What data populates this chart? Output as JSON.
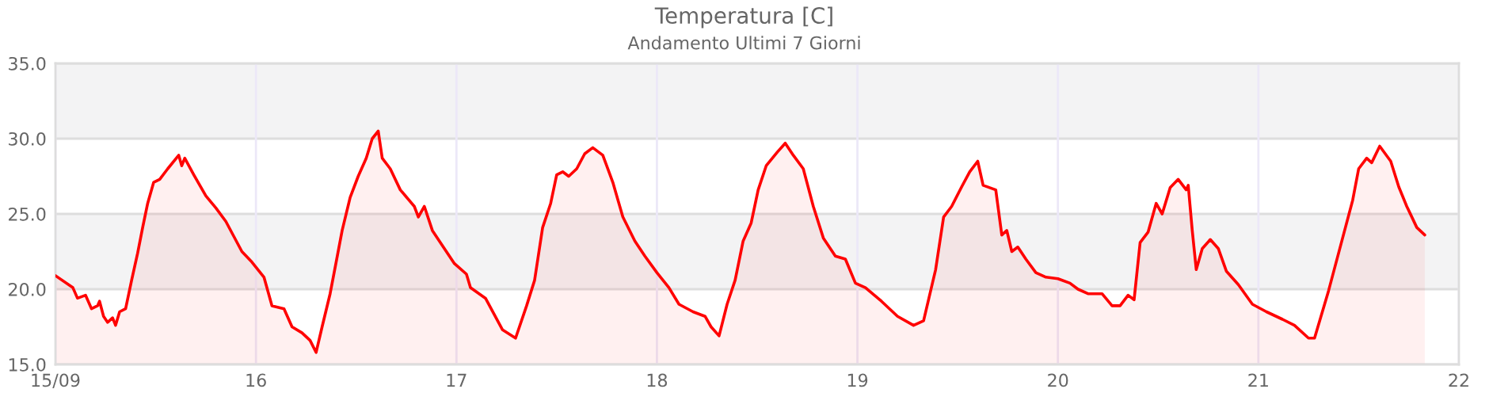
{
  "chart_data": {
    "type": "area",
    "title": "Temperatura [C]",
    "subtitle": "Andamento Ultimi 7 Giorni",
    "xlim": [
      15,
      22
    ],
    "ylim": [
      15,
      35
    ],
    "xticks": [
      {
        "value": 15,
        "label": "15/09"
      },
      16,
      17,
      18,
      19,
      20,
      21,
      22
    ],
    "yticks": [
      {
        "value": 15,
        "label": "15.0"
      },
      {
        "value": 20,
        "label": "20.0"
      },
      {
        "value": 25,
        "label": "25.0"
      },
      {
        "value": 30,
        "label": "30.0"
      },
      {
        "value": 35,
        "label": "35.0"
      }
    ],
    "grid": true,
    "bands": [
      {
        "axis": "y",
        "from": 20,
        "to": 25,
        "color": "#f3f3f4"
      },
      {
        "axis": "y",
        "from": 30,
        "to": 35,
        "color": "#f3f3f4"
      }
    ],
    "series": [
      {
        "color": "#ff0000",
        "x": [
          15.0,
          15.087,
          15.11,
          15.15,
          15.18,
          15.21,
          15.22,
          15.24,
          15.26,
          15.285,
          15.3,
          15.32,
          15.35,
          15.38,
          15.41,
          15.435,
          15.46,
          15.49,
          15.52,
          15.56,
          15.615,
          15.63,
          15.645,
          15.69,
          15.75,
          15.8,
          15.85,
          15.93,
          15.98,
          16.04,
          16.08,
          16.14,
          16.18,
          16.23,
          16.27,
          16.3,
          16.33,
          16.37,
          16.4,
          16.43,
          16.47,
          16.51,
          16.55,
          16.58,
          16.61,
          16.63,
          16.67,
          16.72,
          16.79,
          16.81,
          16.84,
          16.88,
          16.93,
          16.99,
          17.05,
          17.07,
          17.145,
          17.23,
          17.295,
          17.35,
          17.39,
          17.43,
          17.47,
          17.5,
          17.53,
          17.56,
          17.6,
          17.64,
          17.68,
          17.73,
          17.78,
          17.83,
          17.89,
          17.94,
          18.0,
          18.06,
          18.11,
          18.18,
          18.24,
          18.27,
          18.31,
          18.35,
          18.39,
          18.43,
          18.47,
          18.505,
          18.545,
          18.6,
          18.64,
          18.68,
          18.73,
          18.78,
          18.83,
          18.89,
          18.94,
          18.99,
          19.04,
          19.12,
          19.2,
          19.28,
          19.33,
          19.39,
          19.43,
          19.47,
          19.52,
          19.56,
          19.6,
          19.627,
          19.69,
          19.72,
          19.745,
          19.77,
          19.8,
          19.84,
          19.89,
          19.94,
          20.0,
          20.06,
          20.1,
          20.15,
          20.22,
          20.27,
          20.31,
          20.35,
          20.38,
          20.41,
          20.45,
          20.49,
          20.52,
          20.56,
          20.6,
          20.64,
          20.65,
          20.67,
          20.69,
          20.72,
          20.76,
          20.8,
          20.84,
          20.9,
          20.97,
          21.04,
          21.12,
          21.18,
          21.25,
          21.28,
          21.35,
          21.41,
          21.47,
          21.5,
          21.54,
          21.565,
          21.605,
          21.66,
          21.7,
          21.74,
          21.79,
          21.83
        ],
        "values": [
          20.9,
          20.1,
          19.4,
          19.6,
          18.7,
          18.9,
          19.2,
          18.2,
          17.8,
          18.1,
          17.6,
          18.5,
          18.7,
          20.6,
          22.4,
          24.1,
          25.7,
          27.1,
          27.3,
          28.0,
          28.9,
          28.2,
          28.7,
          27.6,
          26.2,
          25.4,
          24.5,
          22.5,
          21.8,
          20.8,
          18.9,
          18.7,
          17.5,
          17.1,
          16.6,
          15.8,
          17.5,
          19.7,
          21.8,
          23.9,
          26.1,
          27.5,
          28.7,
          30.0,
          30.5,
          28.7,
          28.0,
          26.6,
          25.5,
          24.8,
          25.5,
          23.9,
          22.9,
          21.7,
          21.0,
          20.1,
          19.4,
          17.3,
          16.75,
          18.9,
          20.6,
          24.1,
          25.7,
          27.6,
          27.8,
          27.5,
          28.0,
          29.0,
          29.4,
          28.9,
          27.1,
          24.8,
          23.2,
          22.2,
          21.1,
          20.1,
          19.0,
          18.5,
          18.2,
          17.5,
          16.9,
          19.0,
          20.6,
          23.2,
          24.4,
          26.6,
          28.2,
          29.1,
          29.7,
          28.9,
          28.0,
          25.5,
          23.4,
          22.2,
          22.0,
          20.4,
          20.1,
          19.2,
          18.2,
          17.6,
          17.9,
          21.3,
          24.8,
          25.5,
          26.8,
          27.8,
          28.5,
          26.9,
          26.6,
          23.6,
          23.9,
          22.5,
          22.8,
          22.0,
          21.1,
          20.8,
          20.7,
          20.4,
          20.0,
          19.7,
          19.7,
          18.9,
          18.9,
          19.6,
          19.3,
          23.1,
          23.8,
          25.7,
          25.0,
          26.75,
          27.3,
          26.6,
          26.9,
          23.9,
          21.3,
          22.7,
          23.3,
          22.7,
          21.2,
          20.3,
          19.0,
          18.5,
          18.0,
          17.6,
          16.75,
          16.75,
          19.9,
          22.9,
          25.9,
          28.0,
          28.7,
          28.4,
          29.5,
          28.5,
          26.8,
          25.5,
          24.1,
          23.6
        ]
      }
    ]
  }
}
